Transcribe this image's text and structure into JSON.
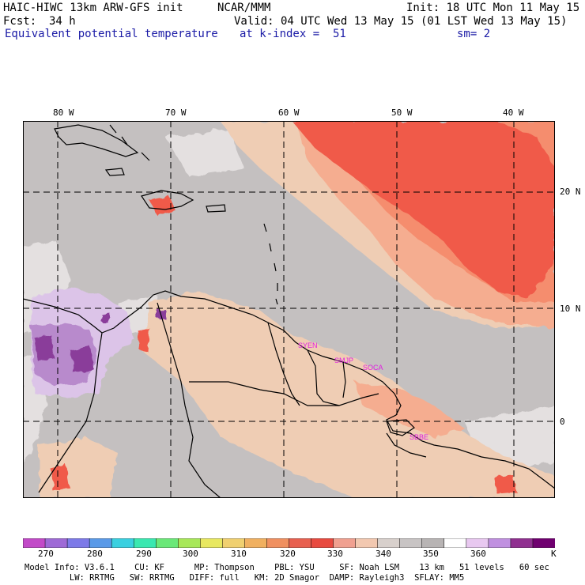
{
  "header": {
    "title": "HAIC-HIWC 13km ARW-GFS init",
    "org": "NCAR/MMM",
    "init": "Init: 18 UTC Mon 11 May 15",
    "fcst_label": "Fcst:",
    "fcst_value": "34 h",
    "valid": "Valid: 04 UTC Wed 13 May 15 (01 LST Wed 13 May 15)",
    "field": "Equivalent potential temperature",
    "level": "at k-index =  51",
    "smoothing": "sm= 2"
  },
  "axes": {
    "lon_labels": [
      "80 W",
      "70 W",
      "60 W",
      "50 W",
      "40 W"
    ],
    "lat_labels": [
      "20 N",
      "10 N",
      "0"
    ]
  },
  "stations": [
    "SYEN",
    "SMJP",
    "SOCA",
    "SBBE"
  ],
  "legend": {
    "ticks": [
      "270",
      "280",
      "290",
      "300",
      "310",
      "320",
      "330",
      "340",
      "350",
      "360"
    ],
    "unit": "K",
    "colors": [
      "#c24ac8",
      "#9e6ad6",
      "#7d7ae8",
      "#5a9ae8",
      "#3ad0e0",
      "#3ae8b0",
      "#6ae878",
      "#a8e858",
      "#e8e860",
      "#f0d070",
      "#f0b060",
      "#f09060",
      "#e86050",
      "#e84a40",
      "#f0a090",
      "#f2c8b0",
      "#d8d0cc",
      "#c8c4c4",
      "#b8b4b4",
      "#ffffff",
      "#e8c8f0",
      "#c090e0",
      "#903090",
      "#700070"
    ]
  },
  "footer": {
    "line1": "Model Info: V3.6.1    CU: KF      MP: Thompson    PBL: YSU     SF: Noah LSM    13 km   51 levels   60 sec",
    "line2": "         LW: RRTMG   SW: RRTMG   DIFF: full   KM: 2D Smagor  DAMP: Rayleigh3  SFLAY: MM5"
  },
  "map_colors": {
    "base": "#c4c0c0",
    "light": "#e4e0e0",
    "tan": "#f0c8a8",
    "salmon": "#f5a88a",
    "orange": "#f58a6a",
    "red": "#f05a4a",
    "purple": "#b88acc",
    "lightpurple": "#d8bce6",
    "darkpurple": "#8a3c9a"
  }
}
